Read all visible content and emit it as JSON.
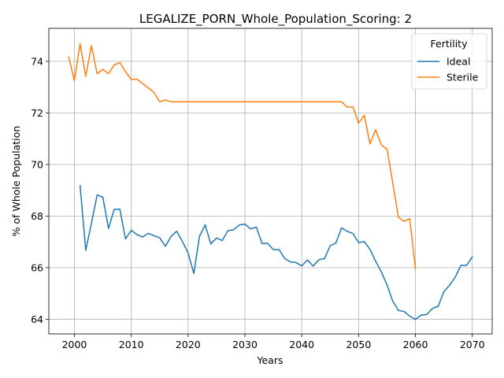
{
  "chart_data": {
    "type": "line",
    "title": "LEGALIZE_PORN_Whole_Population_Scoring: 2",
    "xlabel": "Years",
    "ylabel": "% of Whole Population",
    "xlim": [
      1995.5,
      2073.5
    ],
    "ylim": [
      63.43,
      75.28
    ],
    "xticks": [
      2000,
      2010,
      2020,
      2030,
      2040,
      2050,
      2060,
      2070
    ],
    "yticks": [
      64,
      66,
      68,
      70,
      72,
      74
    ],
    "grid": true,
    "legend": {
      "title": "Fertility",
      "placement": "top-right"
    },
    "series": [
      {
        "name": "Ideal",
        "color": "#1f77b4",
        "x": [
          2001,
          2002,
          2003,
          2004,
          2005,
          2006,
          2007,
          2008,
          2009,
          2010,
          2011,
          2012,
          2013,
          2014,
          2015,
          2016,
          2017,
          2018,
          2019,
          2020,
          2021,
          2022,
          2023,
          2024,
          2025,
          2026,
          2027,
          2028,
          2029,
          2030,
          2031,
          2032,
          2033,
          2034,
          2035,
          2036,
          2037,
          2038,
          2039,
          2040,
          2041,
          2042,
          2043,
          2044,
          2045,
          2046,
          2047,
          2048,
          2049,
          2050,
          2051,
          2052,
          2053,
          2054,
          2055,
          2056,
          2057,
          2058,
          2059,
          2060,
          2061,
          2062,
          2063,
          2064,
          2065,
          2066,
          2067,
          2068,
          2069,
          2070
        ],
        "values": [
          69.18,
          66.67,
          67.72,
          68.82,
          68.73,
          67.52,
          68.26,
          68.27,
          67.11,
          67.45,
          67.28,
          67.19,
          67.33,
          67.24,
          67.16,
          66.83,
          67.21,
          67.41,
          67.02,
          66.57,
          65.78,
          67.21,
          67.66,
          66.92,
          67.15,
          67.05,
          67.43,
          67.47,
          67.65,
          67.69,
          67.5,
          67.57,
          66.94,
          66.94,
          66.7,
          66.7,
          66.36,
          66.22,
          66.2,
          66.07,
          66.3,
          66.06,
          66.31,
          66.35,
          66.85,
          66.95,
          67.54,
          67.41,
          67.32,
          66.97,
          67.01,
          66.71,
          66.25,
          65.83,
          65.33,
          64.7,
          64.34,
          64.3,
          64.12,
          63.99,
          64.16,
          64.18,
          64.42,
          64.5,
          65.06,
          65.32,
          65.63,
          66.09,
          66.09,
          66.41
        ]
      },
      {
        "name": "Sterile",
        "color": "#ff7f0e",
        "x": [
          1999,
          2000,
          2001,
          2002,
          2003,
          2004,
          2005,
          2006,
          2007,
          2008,
          2009,
          2010,
          2011,
          2012,
          2013,
          2014,
          2015,
          2016,
          2017,
          2018,
          2019,
          2020,
          2021,
          2022,
          2023,
          2024,
          2025,
          2026,
          2027,
          2028,
          2029,
          2030,
          2031,
          2032,
          2033,
          2034,
          2035,
          2036,
          2037,
          2038,
          2039,
          2040,
          2041,
          2042,
          2043,
          2044,
          2045,
          2046,
          2047,
          2048,
          2049,
          2050,
          2051,
          2052,
          2053,
          2054,
          2055,
          2056,
          2057,
          2058,
          2059,
          2060
        ],
        "values": [
          74.17,
          73.25,
          74.68,
          73.42,
          74.61,
          73.52,
          73.69,
          73.52,
          73.86,
          73.95,
          73.6,
          73.3,
          73.31,
          73.14,
          72.97,
          72.8,
          72.43,
          72.5,
          72.43,
          72.43,
          72.43,
          72.43,
          72.43,
          72.43,
          72.43,
          72.43,
          72.43,
          72.43,
          72.43,
          72.43,
          72.43,
          72.43,
          72.43,
          72.43,
          72.43,
          72.43,
          72.43,
          72.43,
          72.43,
          72.43,
          72.43,
          72.43,
          72.43,
          72.43,
          72.43,
          72.43,
          72.43,
          72.43,
          72.43,
          72.23,
          72.23,
          71.6,
          71.91,
          70.8,
          71.35,
          70.76,
          70.59,
          69.3,
          67.96,
          67.79,
          67.9,
          65.96
        ]
      }
    ]
  }
}
